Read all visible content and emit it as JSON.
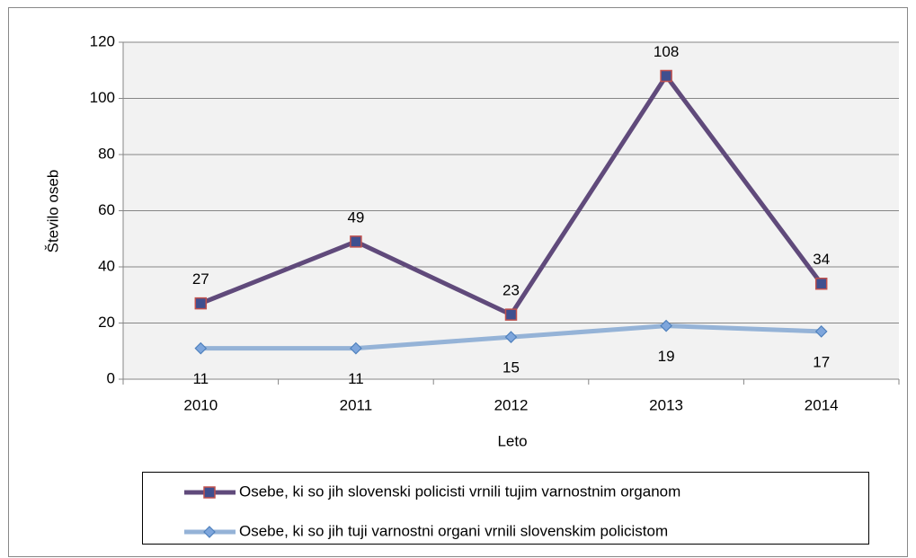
{
  "chart_data": {
    "type": "line",
    "x_label": "Leto",
    "y_label": "Število oseb",
    "categories": [
      "2010",
      "2011",
      "2012",
      "2013",
      "2014"
    ],
    "series": [
      {
        "name": "Osebe, ki so jih slovenski policisti vrnili tujim varnostnim organom",
        "color": "#604a7b",
        "marker": "square",
        "marker_fill": "#3f4f8f",
        "marker_edge": "#c0504d",
        "values": [
          27,
          49,
          23,
          108,
          34
        ]
      },
      {
        "name": "Osebe, ki so jih tuji varnostni organi vrnili slovenskim policistom",
        "color": "#95b3d7",
        "marker": "diamond",
        "marker_fill": "#7ea6dc",
        "marker_edge": "#4f81bd",
        "values": [
          11,
          11,
          15,
          19,
          17
        ]
      }
    ],
    "ylim": [
      0,
      120
    ],
    "yticks": [
      0,
      20,
      40,
      60,
      80,
      100,
      120
    ],
    "grid": true,
    "legend": "bottom"
  }
}
